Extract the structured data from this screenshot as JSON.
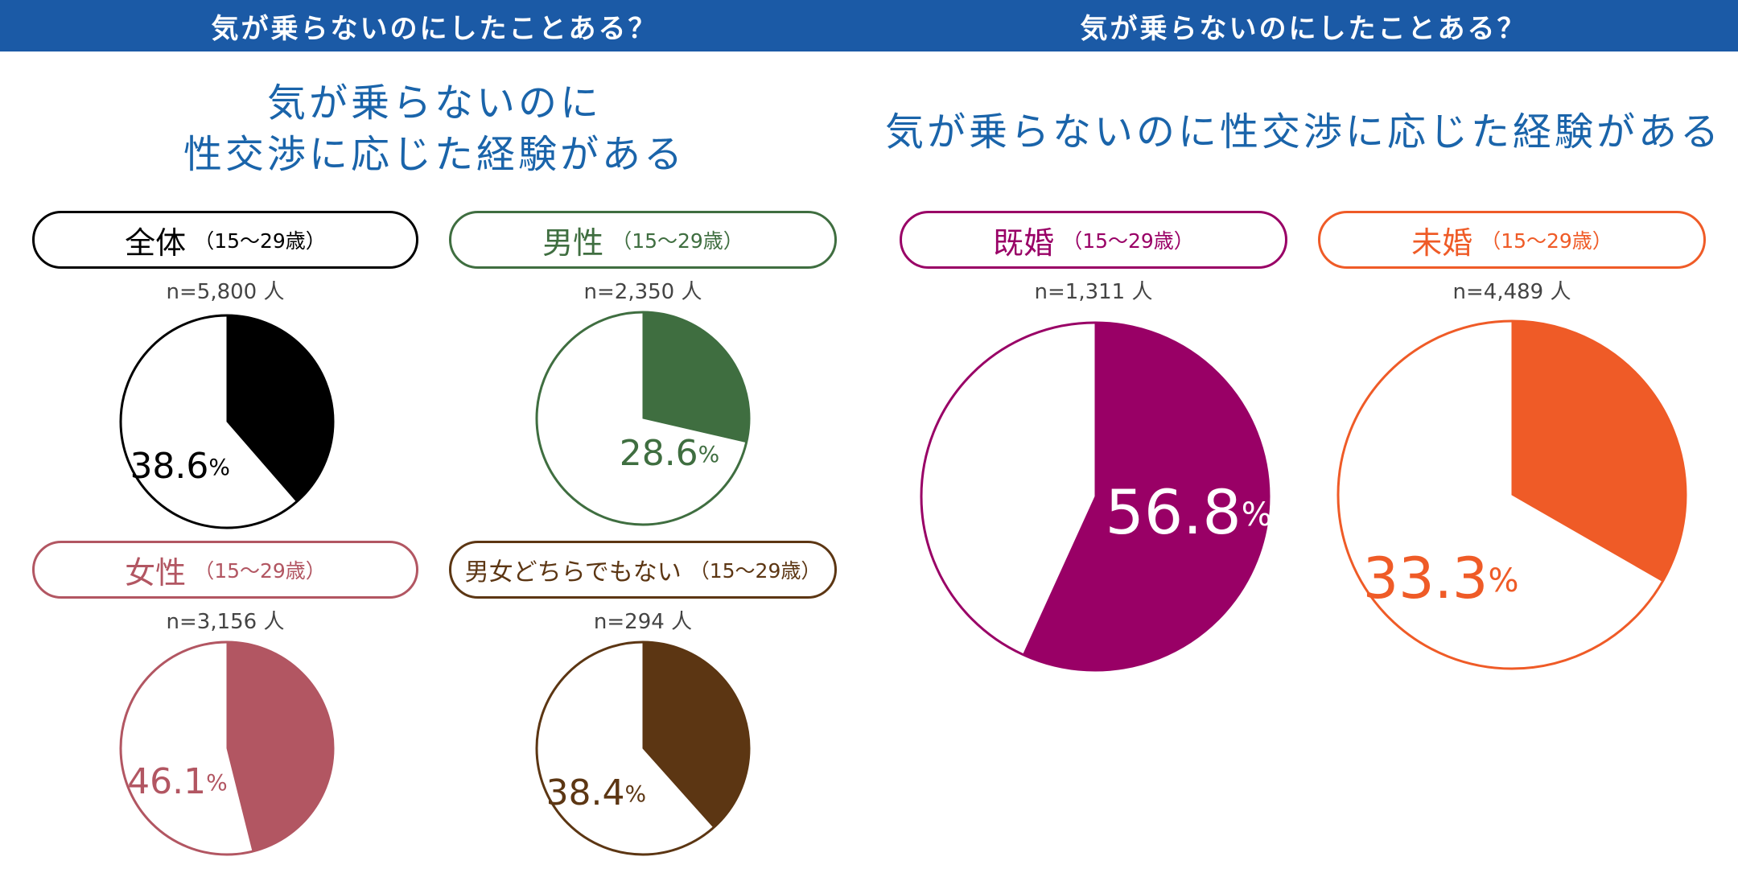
{
  "left_panel": {
    "banner": "気が乗らないのにしたことある？",
    "headline": [
      "気が乗らないのに",
      "性交渉に応じた経験がある"
    ]
  },
  "right_panel": {
    "banner": "気が乗らないのにしたことある？",
    "headline": [
      "気が乗らないのに性交渉に応じた経験がある"
    ]
  },
  "colors": {
    "banner": "#1b5aa6",
    "headline": "#1a64aa",
    "all": "#000000",
    "male": "#3f6e40",
    "female": "#b25662",
    "neither": "#5c3613",
    "married": "#990066",
    "unmarried": "#ef5b27"
  },
  "chart_data": [
    {
      "type": "pie",
      "title": "全体",
      "age_label": "（15〜29歳）",
      "n_label": "n=5,800 人",
      "value": 38.6,
      "unit": "%",
      "color": "#000000"
    },
    {
      "type": "pie",
      "title": "男性",
      "age_label": "（15〜29歳）",
      "n_label": "n=2,350 人",
      "value": 28.6,
      "unit": "%",
      "color": "#3f6e40"
    },
    {
      "type": "pie",
      "title": "女性",
      "age_label": "（15〜29歳）",
      "n_label": "n=3,156 人",
      "value": 46.1,
      "unit": "%",
      "color": "#b25662"
    },
    {
      "type": "pie",
      "title": "男女どちらでもない",
      "age_label": "（15〜29歳）",
      "n_label": "n=294 人",
      "value": 38.4,
      "unit": "%",
      "color": "#5c3613"
    },
    {
      "type": "pie",
      "title": "既婚",
      "age_label": "（15〜29歳）",
      "n_label": "n=1,311 人",
      "value": 56.8,
      "unit": "%",
      "color": "#990066"
    },
    {
      "type": "pie",
      "title": "未婚",
      "age_label": "（15〜29歳）",
      "n_label": "n=4,489 人",
      "value": 33.3,
      "unit": "%",
      "color": "#ef5b27"
    }
  ]
}
